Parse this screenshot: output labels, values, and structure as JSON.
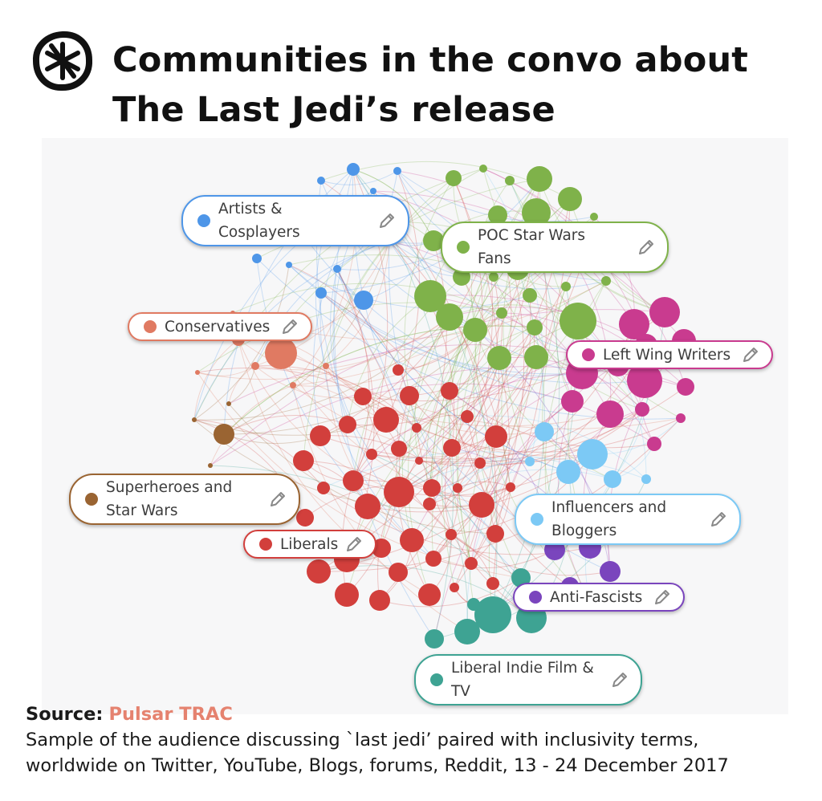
{
  "header": {
    "title_line1": "Communities in the convo about",
    "title_line2": "The Last Jedi’s release"
  },
  "colors": {
    "artists": "#4e96e8",
    "poc": "#7fb24a",
    "left_wing": "#c93b8f",
    "conservatives": "#e07a62",
    "superheroes": "#9a6432",
    "liberals": "#d23f3c",
    "influencers": "#7cc9f5",
    "anti_fascists": "#7a45bd",
    "indie_film": "#3ea393",
    "source_accent": "#e5826f"
  },
  "communities": [
    {
      "label": "Artists & Cosplayers",
      "line1": "Artists &",
      "line2": "Cosplayers",
      "color_key": "artists",
      "icon": "pencil-icon"
    },
    {
      "label": "POC Star Wars Fans",
      "line1": "POC Star Wars",
      "line2": "Fans",
      "color_key": "poc",
      "icon": "pencil-icon"
    },
    {
      "label": "Conservatives",
      "line1": "Conservatives",
      "color_key": "conservatives",
      "icon": "pencil-icon"
    },
    {
      "label": "Left Wing Writers",
      "line1": "Left Wing Writers",
      "color_key": "left_wing",
      "icon": "pencil-icon"
    },
    {
      "label": "Superheroes and Star Wars",
      "line1": "Superheroes and",
      "line2": "Star Wars",
      "color_key": "superheroes",
      "icon": "pencil-icon"
    },
    {
      "label": "Influencers and Bloggers",
      "line1": "Influencers and",
      "line2": "Bloggers",
      "color_key": "influencers",
      "icon": "pencil-icon"
    },
    {
      "label": "Liberals",
      "line1": "Liberals",
      "color_key": "liberals",
      "icon": "pencil-icon"
    },
    {
      "label": "Anti-Fascists",
      "line1": "Anti-Fascists",
      "color_key": "anti_fascists",
      "icon": "pencil-icon"
    },
    {
      "label": "Liberal Indie Film & TV",
      "line1": "Liberal Indie Film &",
      "line2": "TV",
      "color_key": "indie_film",
      "icon": "pencil-icon"
    }
  ],
  "footer": {
    "source_label": "Source:",
    "source_value": "Pulsar TRAC",
    "description_line1": "Sample of the audience discussing `last jedi’ paired with inclusivity terms,",
    "description_line2": "worldwide on Twitter, YouTube, Blogs, forums, Reddit, 13 - 24 December 2017"
  },
  "icons": {
    "logo": "asterisk-logo-icon",
    "edit": "pencil-icon"
  }
}
